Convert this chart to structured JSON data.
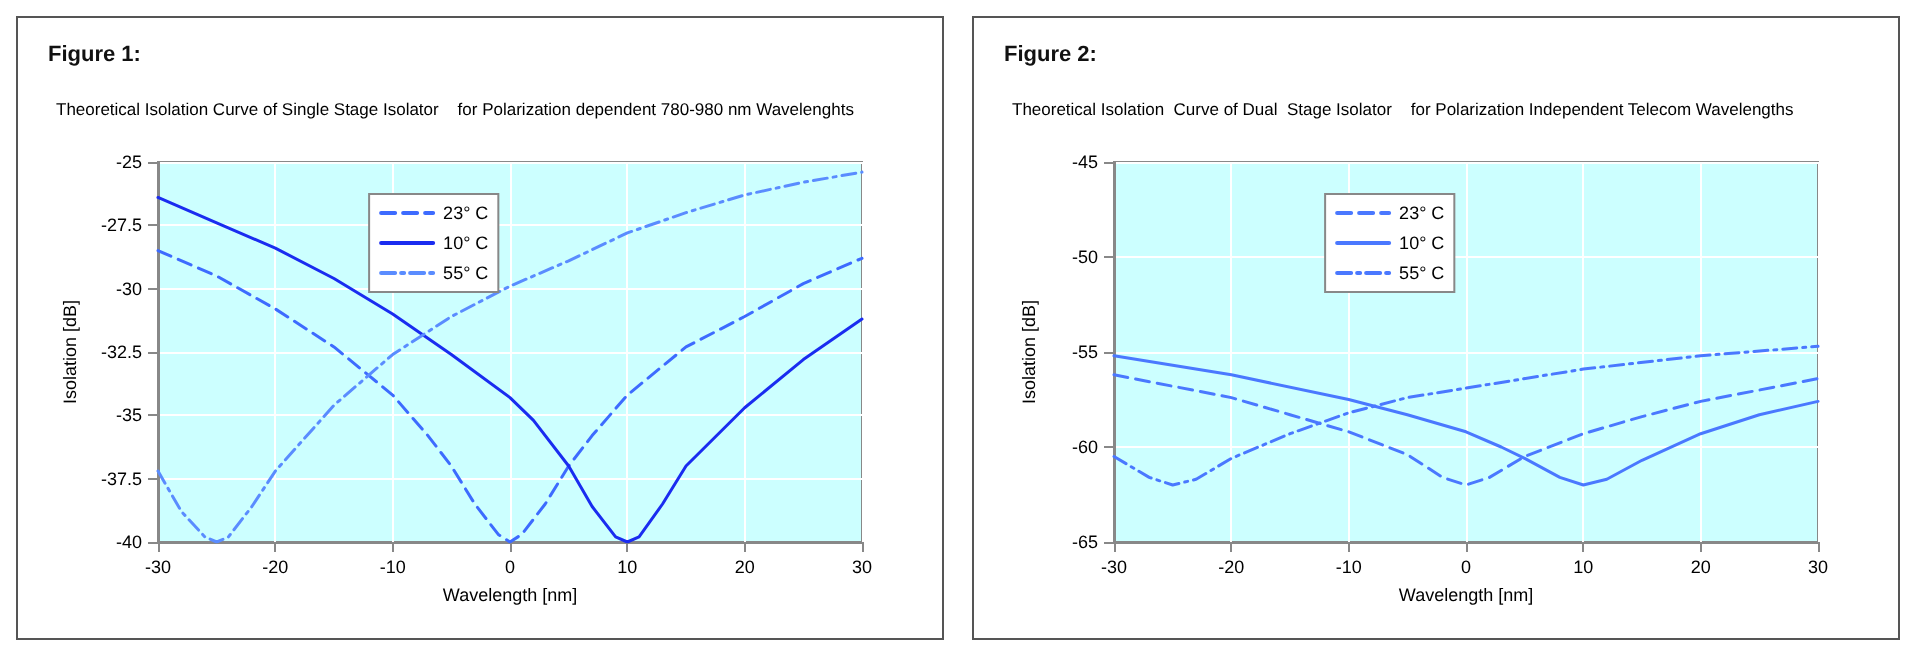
{
  "chart_data": [
    {
      "type": "line",
      "title": "Figure 1:",
      "subtitle": "Theoretical Isolation Curve of Single Stage Isolator    for Polarization dependent 780-980 nm Wavelenghts",
      "xlabel": "Wavelength [nm]",
      "ylabel": "Isolation [dB]",
      "xlim": [
        -30,
        30
      ],
      "xticks": [
        -30,
        -20,
        -10,
        0,
        10,
        20,
        30
      ],
      "ylim": [
        -40,
        -25
      ],
      "yticks": [
        -40,
        -37.5,
        -35,
        -32.5,
        -30,
        -27.5,
        -25
      ],
      "grid": true,
      "legend": "top",
      "marker": "none",
      "series": [
        {
          "name": "23° C",
          "color": "#3d6bff",
          "line_style": "dashed",
          "x": [
            -30,
            -25,
            -20,
            -15,
            -10,
            -7,
            -5,
            -3,
            -1,
            0,
            1,
            3,
            5,
            7,
            10,
            15,
            20,
            25,
            30
          ],
          "values": [
            -28.5,
            -29.5,
            -30.8,
            -32.3,
            -34.2,
            -35.8,
            -37,
            -38.5,
            -39.7,
            -40,
            -39.7,
            -38.5,
            -37,
            -35.8,
            -34.2,
            -32.3,
            -31.1,
            -29.8,
            -28.8
          ]
        },
        {
          "name": "10° C",
          "color": "#1a2cf0",
          "line_style": "solid",
          "x": [
            -30,
            -25,
            -20,
            -15,
            -10,
            -5,
            0,
            2,
            5,
            7,
            9,
            10,
            11,
            13,
            15,
            20,
            25,
            30
          ],
          "values": [
            -26.4,
            -27.4,
            -28.4,
            -29.6,
            -31,
            -32.6,
            -34.3,
            -35.2,
            -37,
            -38.6,
            -39.8,
            -40,
            -39.8,
            -38.5,
            -37,
            -34.7,
            -32.8,
            -31.2
          ]
        },
        {
          "name": "55° C",
          "color": "#5a8cff",
          "line_style": "dotted",
          "x": [
            -30,
            -28,
            -26,
            -25,
            -24,
            -22,
            -20,
            -15,
            -10,
            -5,
            0,
            5,
            10,
            15,
            20,
            25,
            30
          ],
          "values": [
            -37.2,
            -38.8,
            -39.8,
            -40,
            -39.8,
            -38.6,
            -37.2,
            -34.6,
            -32.6,
            -31.1,
            -29.9,
            -28.9,
            -27.8,
            -27,
            -26.3,
            -25.8,
            -25.4
          ]
        }
      ]
    },
    {
      "type": "line",
      "title": "Figure 2:",
      "subtitle": "Theoretical Isolation  Curve of Dual  Stage Isolator    for Polarization Independent Telecom Wavelengths",
      "xlabel": "Wavelength [nm]",
      "ylabel": "Isolation [dB]",
      "xlim": [
        -30,
        30
      ],
      "xticks": [
        -30,
        -20,
        -10,
        0,
        10,
        20,
        30
      ],
      "ylim": [
        -65,
        -45
      ],
      "yticks": [
        -65,
        -60,
        -55,
        -50,
        -45
      ],
      "grid": true,
      "legend": "top",
      "marker": "none",
      "series": [
        {
          "name": "23° C",
          "color": "#4a78ff",
          "line_style": "dashed",
          "x": [
            -30,
            -20,
            -15,
            -10,
            -5,
            -2,
            0,
            2,
            5,
            10,
            15,
            20,
            25,
            30
          ],
          "values": [
            -56.2,
            -57.4,
            -58.3,
            -59.2,
            -60.4,
            -61.6,
            -62,
            -61.6,
            -60.5,
            -59.3,
            -58.4,
            -57.6,
            -57,
            -56.4
          ]
        },
        {
          "name": "10° C",
          "color": "#4a78ff",
          "line_style": "solid",
          "x": [
            -30,
            -20,
            -10,
            -5,
            0,
            3,
            5,
            8,
            10,
            12,
            15,
            20,
            25,
            30
          ],
          "values": [
            -55.2,
            -56.2,
            -57.5,
            -58.3,
            -59.2,
            -60,
            -60.6,
            -61.6,
            -62,
            -61.7,
            -60.7,
            -59.3,
            -58.3,
            -57.6
          ]
        },
        {
          "name": "55° C",
          "color": "#4a78ff",
          "line_style": "dotted",
          "x": [
            -30,
            -27,
            -25,
            -23,
            -20,
            -15,
            -10,
            -5,
            0,
            10,
            20,
            30
          ],
          "values": [
            -60.5,
            -61.6,
            -62,
            -61.7,
            -60.6,
            -59.3,
            -58.2,
            -57.4,
            -56.9,
            -55.9,
            -55.2,
            -54.7
          ]
        }
      ]
    }
  ]
}
